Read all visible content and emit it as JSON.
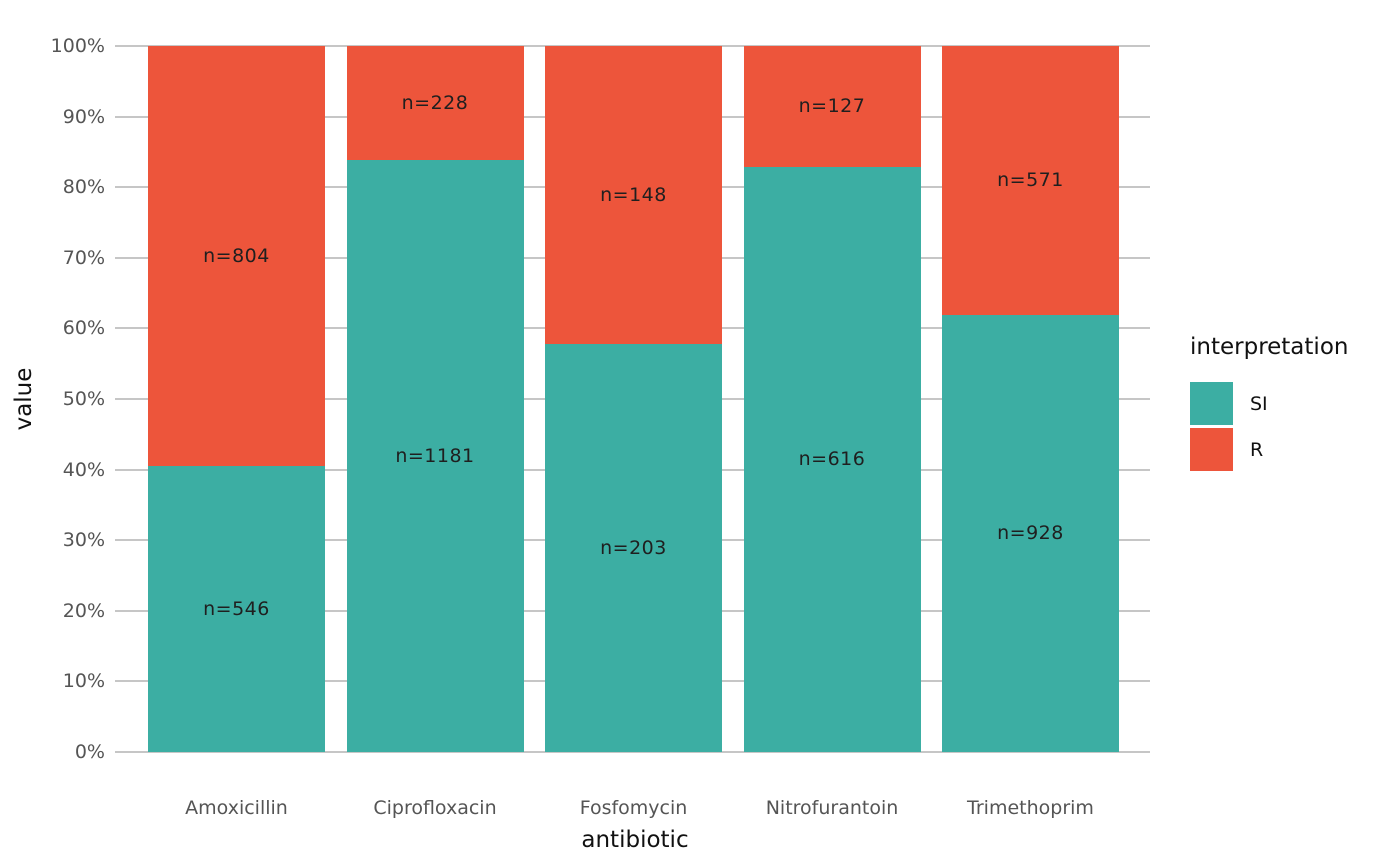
{
  "chart_data": {
    "type": "bar",
    "stacked": true,
    "normalized": "percent",
    "xlabel": "antibiotic",
    "ylabel": "value",
    "categories": [
      "Amoxicillin",
      "Ciprofloxacin",
      "Fosfomycin",
      "Nitrofurantoin",
      "Trimethoprim"
    ],
    "series": [
      {
        "name": "SI",
        "color": "#3CAEA3",
        "values": [
          546,
          1181,
          203,
          616,
          928
        ],
        "labels": [
          "n=546",
          "n=1181",
          "n=203",
          "n=616",
          "n=928"
        ]
      },
      {
        "name": "R",
        "color": "#ED553B",
        "values": [
          804,
          228,
          148,
          127,
          571
        ],
        "labels": [
          "n=804",
          "n=228",
          "n=148",
          "n=127",
          "n=571"
        ]
      }
    ],
    "si_percent_of_total": [
      40.4,
      83.8,
      57.8,
      82.9,
      61.9
    ],
    "ylim": [
      0,
      100
    ],
    "y_ticks": [
      "0%",
      "10%",
      "20%",
      "30%",
      "40%",
      "50%",
      "60%",
      "70%",
      "80%",
      "90%",
      "100%"
    ],
    "grid": "horizontal-major",
    "legend": {
      "title": "interpretation",
      "position": "right",
      "entries": [
        {
          "label": "SI",
          "color": "#3CAEA3"
        },
        {
          "label": "R",
          "color": "#ED553B"
        }
      ]
    }
  },
  "colors": {
    "si_fill": "#3CAEA3",
    "r_fill": "#ED553B",
    "gridline": "#C6C6C6",
    "tick_text": "#555555",
    "axis_title_text": "#111111",
    "bar_label_text": "#1F1F1F",
    "background": "#FFFFFF"
  }
}
